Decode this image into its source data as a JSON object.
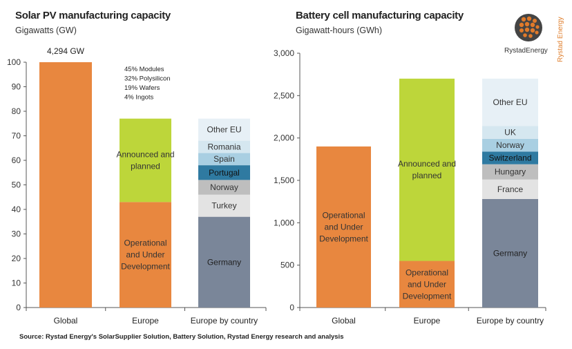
{
  "charts": [
    {
      "title": "Solar PV manufacturing capacity",
      "subtitle": "Gigawatts (GW)"
    },
    {
      "title": "Battery cell manufacturing capacity",
      "subtitle": "Gigawatt-hours (GWh)"
    }
  ],
  "source": "Source: Rystad Energy's SolarSupplier Solution, Battery Solution, Rystad Energy research and analysis",
  "logo": {
    "name": "RystadEnergy",
    "vertical": "Rystad Energy"
  },
  "colors": {
    "operational": "#E8873F",
    "announced": "#BDD63A",
    "germany": "#7A8699",
    "light_gray": "#E3E3E3",
    "mid_gray": "#BEBEBE",
    "dark_teal": "#2F7AA1",
    "light_blue": "#A9CFE2",
    "pale_blue": "#D5E7F0",
    "palest_blue": "#E7F0F6",
    "axis": "#555555"
  },
  "chart_data": [
    {
      "type": "bar",
      "stacked": true,
      "title": "Solar PV manufacturing capacity",
      "ylabel": "Gigawatts (GW)",
      "ylim": [
        0,
        100
      ],
      "yticks": [
        0,
        10,
        20,
        30,
        40,
        50,
        60,
        70,
        80,
        90,
        100
      ],
      "categories": [
        "Global",
        "Europe",
        "Europe by country"
      ],
      "bars": [
        {
          "category": "Global",
          "top_label": "4,294 GW",
          "segments": [
            {
              "name": "",
              "value": 100,
              "color": "#E8873F",
              "text_color": "#333"
            }
          ]
        },
        {
          "category": "Europe",
          "segments": [
            {
              "name": "Operational and Under Development",
              "value": 43,
              "color": "#E8873F",
              "text_color": "#333"
            },
            {
              "name": "Announced and planned",
              "value": 34,
              "color": "#BDD63A",
              "text_color": "#333"
            }
          ]
        },
        {
          "category": "Europe by country",
          "segments": [
            {
              "name": "Germany",
              "value": 37,
              "color": "#7A8699",
              "text_color": "#222"
            },
            {
              "name": "Turkey",
              "value": 9,
              "color": "#E3E3E3",
              "text_color": "#333"
            },
            {
              "name": "Norway",
              "value": 6,
              "color": "#BEBEBE",
              "text_color": "#333"
            },
            {
              "name": "Portugal",
              "value": 6,
              "color": "#2F7AA1",
              "text_color": "#111"
            },
            {
              "name": "Spain",
              "value": 5,
              "color": "#A9CFE2",
              "text_color": "#333"
            },
            {
              "name": "Romania",
              "value": 5,
              "color": "#D5E7F0",
              "text_color": "#333"
            },
            {
              "name": "Other EU",
              "value": 9,
              "color": "#E7F0F6",
              "text_color": "#333"
            }
          ]
        }
      ],
      "annotation": [
        "45% Modules",
        "32% Polysilicon",
        "19% Wafers",
        "4% Ingots"
      ]
    },
    {
      "type": "bar",
      "stacked": true,
      "title": "Battery cell manufacturing capacity",
      "ylabel": "Gigawatt-hours (GWh)",
      "ylim": [
        0,
        3000
      ],
      "yticks": [
        0,
        500,
        1000,
        1500,
        2000,
        2500,
        3000
      ],
      "ytick_labels": [
        "0",
        "500",
        "1,000",
        "1,500",
        "2,000",
        "2,500",
        "3,000"
      ],
      "categories": [
        "Global",
        "Europe",
        "Europe by country"
      ],
      "bars": [
        {
          "category": "Global",
          "segments": [
            {
              "name": "Operational and Under Development",
              "value": 1900,
              "color": "#E8873F",
              "text_color": "#333"
            }
          ]
        },
        {
          "category": "Europe",
          "segments": [
            {
              "name": "Operational and Under Development",
              "value": 550,
              "color": "#E8873F",
              "text_color": "#333"
            },
            {
              "name": "Announced and planned",
              "value": 2150,
              "color": "#BDD63A",
              "text_color": "#333"
            }
          ]
        },
        {
          "category": "Europe by country",
          "segments": [
            {
              "name": "Germany",
              "value": 1280,
              "color": "#7A8699",
              "text_color": "#222"
            },
            {
              "name": "France",
              "value": 230,
              "color": "#E3E3E3",
              "text_color": "#333"
            },
            {
              "name": "Hungary",
              "value": 180,
              "color": "#BEBEBE",
              "text_color": "#333"
            },
            {
              "name": "Switzerland",
              "value": 150,
              "color": "#2F7AA1",
              "text_color": "#111"
            },
            {
              "name": "Norway",
              "value": 150,
              "color": "#A9CFE2",
              "text_color": "#333"
            },
            {
              "name": "UK",
              "value": 150,
              "color": "#D5E7F0",
              "text_color": "#333"
            },
            {
              "name": "Other EU",
              "value": 560,
              "color": "#E7F0F6",
              "text_color": "#333"
            }
          ]
        }
      ]
    }
  ]
}
